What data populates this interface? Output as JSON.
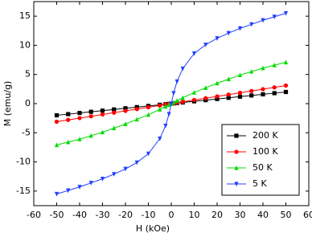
{
  "chart_data": {
    "type": "line",
    "x_label": "H (kOe)",
    "y_label": "M (emu/g)",
    "x": [
      -50,
      -45,
      -40,
      -35,
      -30,
      -25,
      -20,
      -15,
      -10,
      -5,
      -2.5,
      -1,
      0,
      1,
      2.5,
      5,
      10,
      15,
      20,
      25,
      30,
      35,
      40,
      45,
      50
    ],
    "series": [
      {
        "name": "200 K",
        "color": "#000000",
        "marker": "square",
        "values": [
          -2.0,
          -1.8,
          -1.6,
          -1.4,
          -1.2,
          -1.0,
          -0.8,
          -0.6,
          -0.4,
          -0.2,
          -0.1,
          -0.04,
          0,
          0.04,
          0.1,
          0.2,
          0.4,
          0.6,
          0.8,
          1.0,
          1.2,
          1.4,
          1.6,
          1.8,
          2.0
        ]
      },
      {
        "name": "100 K",
        "color": "#ff0000",
        "marker": "circle",
        "values": [
          -3.1,
          -2.79,
          -2.48,
          -2.17,
          -1.86,
          -1.55,
          -1.24,
          -0.93,
          -0.62,
          -0.31,
          -0.16,
          -0.06,
          0,
          0.06,
          0.16,
          0.31,
          0.62,
          0.93,
          1.24,
          1.55,
          1.86,
          2.17,
          2.48,
          2.79,
          3.1
        ]
      },
      {
        "name": "50 K",
        "color": "#00dd00",
        "marker": "triangle-up",
        "values": [
          -7.1,
          -6.6,
          -6.1,
          -5.5,
          -4.9,
          -4.2,
          -3.5,
          -2.7,
          -1.9,
          -1.0,
          -0.5,
          -0.2,
          0,
          0.2,
          0.5,
          1.0,
          1.9,
          2.7,
          3.5,
          4.2,
          4.9,
          5.5,
          6.1,
          6.6,
          7.1
        ]
      },
      {
        "name": "5 K",
        "color": "#2040ff",
        "marker": "triangle-down",
        "values": [
          -15.5,
          -14.9,
          -14.3,
          -13.6,
          -12.9,
          -12.1,
          -11.2,
          -10.1,
          -8.6,
          -6.0,
          -3.8,
          -1.8,
          0,
          1.8,
          3.8,
          6.0,
          8.6,
          10.1,
          11.2,
          12.1,
          12.9,
          13.6,
          14.3,
          14.9,
          15.5
        ]
      }
    ],
    "xlim": [
      -60,
      60
    ],
    "xticks": [
      -60,
      -50,
      -40,
      -30,
      -20,
      -10,
      0,
      10,
      20,
      30,
      40,
      50,
      60
    ],
    "ylim": [
      -17.5,
      17.5
    ],
    "yticks": [
      -15,
      -10,
      -5,
      0,
      5,
      10,
      15
    ],
    "legend_position": "lower right"
  }
}
